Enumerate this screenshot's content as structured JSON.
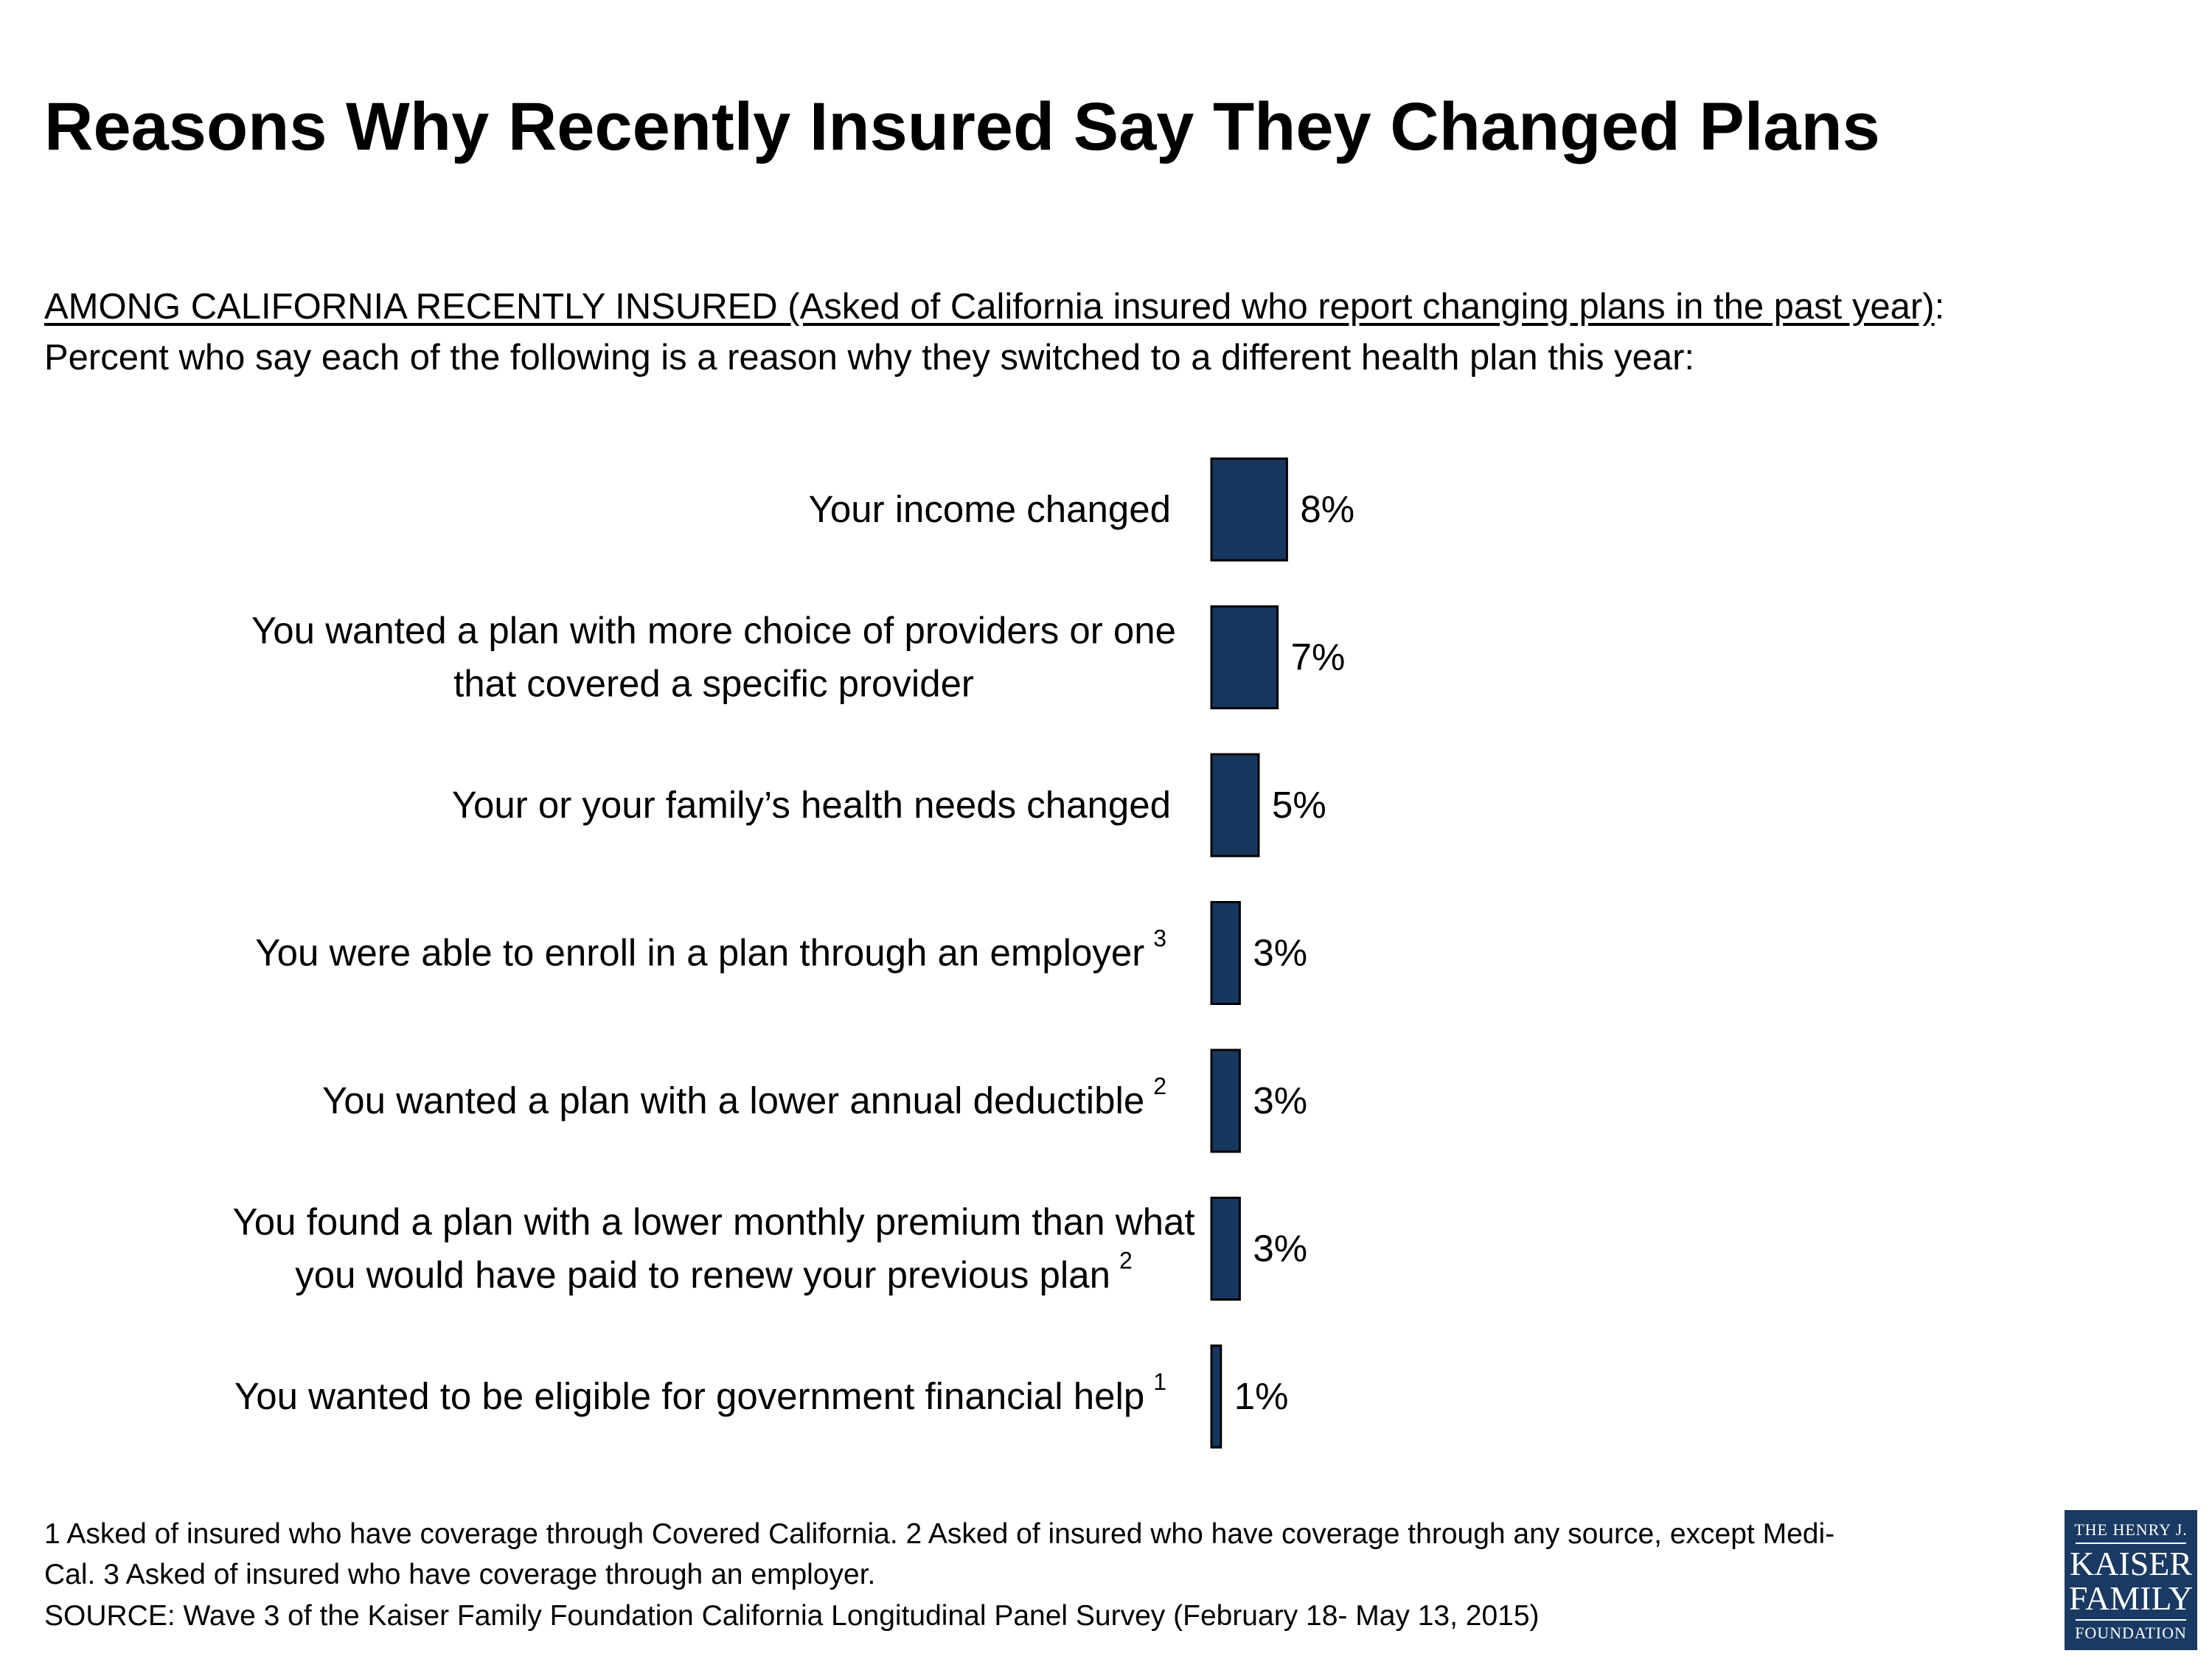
{
  "title": "Reasons Why Recently Insured Say They Changed Plans",
  "subtitle": {
    "lead": "AMONG CALIFORNIA RECENTLY INSURED (Asked of California insured who report changing plans in the past year)",
    "lead_suffix": ":",
    "line2": "Percent who say each of the following is a reason why they switched to a different health plan this year:"
  },
  "chart_data": {
    "type": "bar",
    "orientation": "horizontal",
    "categories": [
      {
        "lines": [
          "Your income changed"
        ],
        "footnote": ""
      },
      {
        "lines": [
          "You wanted a plan with more choice of providers or one",
          "that covered a specific provider"
        ],
        "footnote": ""
      },
      {
        "lines": [
          "Your or your family’s health needs changed"
        ],
        "footnote": ""
      },
      {
        "lines": [
          "You were able to enroll in a plan through an employer"
        ],
        "footnote": "3"
      },
      {
        "lines": [
          "You wanted a plan with a lower annual deductible"
        ],
        "footnote": "2"
      },
      {
        "lines": [
          "You found a plan with a lower monthly premium than what",
          "you would have paid to renew your previous plan"
        ],
        "footnote": "2"
      },
      {
        "lines": [
          "You wanted to be eligible for government financial help"
        ],
        "footnote": "1"
      }
    ],
    "values": [
      8,
      7,
      5,
      3,
      3,
      3,
      1
    ],
    "value_labels": [
      "8%",
      "7%",
      "5%",
      "3%",
      "3%",
      "3%",
      "1%"
    ],
    "bar_color": "#17375e",
    "bar_border": "#000000",
    "xlim": [
      0,
      100
    ],
    "grid": false,
    "legend": "none"
  },
  "footnotes": {
    "line1": "1 Asked of insured who have coverage through Covered California.  2 Asked of insured who have coverage through any source, except Medi-",
    "line2": "Cal. 3 Asked of insured who have coverage through an employer.",
    "source": "SOURCE: Wave 3 of the Kaiser Family Foundation California Longitudinal Panel Survey (February 18- May 13, 2015)"
  },
  "logo": {
    "line1": "THE HENRY J.",
    "line2": "KAISER",
    "line3": "FAMILY",
    "line4": "FOUNDATION",
    "color": "#1a3a63"
  }
}
